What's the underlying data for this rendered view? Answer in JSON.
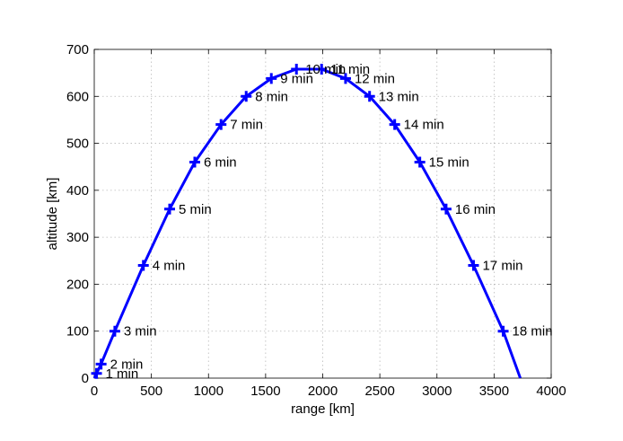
{
  "chart_data": {
    "type": "line",
    "xlabel": "range [km]",
    "ylabel": "altitude [km]",
    "xlim": [
      0,
      4000
    ],
    "ylim": [
      0,
      700
    ],
    "xticks": [
      0,
      500,
      1000,
      1500,
      2000,
      2500,
      3000,
      3500,
      4000
    ],
    "yticks": [
      0,
      100,
      200,
      300,
      400,
      500,
      600,
      700
    ],
    "grid": true,
    "series_color": "#0000ff",
    "trajectory": {
      "x": [
        0,
        20,
        60,
        180,
        430,
        660,
        880,
        1110,
        1330,
        1550,
        1770,
        1990,
        2200,
        2410,
        2630,
        2850,
        3080,
        3320,
        3580,
        3730
      ],
      "y": [
        0,
        10,
        30,
        100,
        240,
        360,
        460,
        540,
        600,
        638,
        658,
        658,
        638,
        600,
        540,
        460,
        360,
        240,
        100,
        0
      ]
    },
    "markers": [
      {
        "label": "1 min",
        "x": 20,
        "y": 10
      },
      {
        "label": "2 min",
        "x": 60,
        "y": 30
      },
      {
        "label": "3 min",
        "x": 180,
        "y": 100
      },
      {
        "label": "4 min",
        "x": 430,
        "y": 240
      },
      {
        "label": "5 min",
        "x": 660,
        "y": 360
      },
      {
        "label": "6 min",
        "x": 880,
        "y": 460
      },
      {
        "label": "7 min",
        "x": 1110,
        "y": 540
      },
      {
        "label": "8 min",
        "x": 1330,
        "y": 600
      },
      {
        "label": "9 min",
        "x": 1550,
        "y": 638
      },
      {
        "label": "10 min",
        "x": 1770,
        "y": 658
      },
      {
        "label": "11 min",
        "x": 1990,
        "y": 658
      },
      {
        "label": "12 min",
        "x": 2200,
        "y": 638
      },
      {
        "label": "13 min",
        "x": 2410,
        "y": 600
      },
      {
        "label": "14 min",
        "x": 2630,
        "y": 540
      },
      {
        "label": "15 min",
        "x": 2850,
        "y": 460
      },
      {
        "label": "16 min",
        "x": 3080,
        "y": 360
      },
      {
        "label": "17 min",
        "x": 3320,
        "y": 240
      },
      {
        "label": "18 min",
        "x": 3580,
        "y": 100
      }
    ]
  }
}
